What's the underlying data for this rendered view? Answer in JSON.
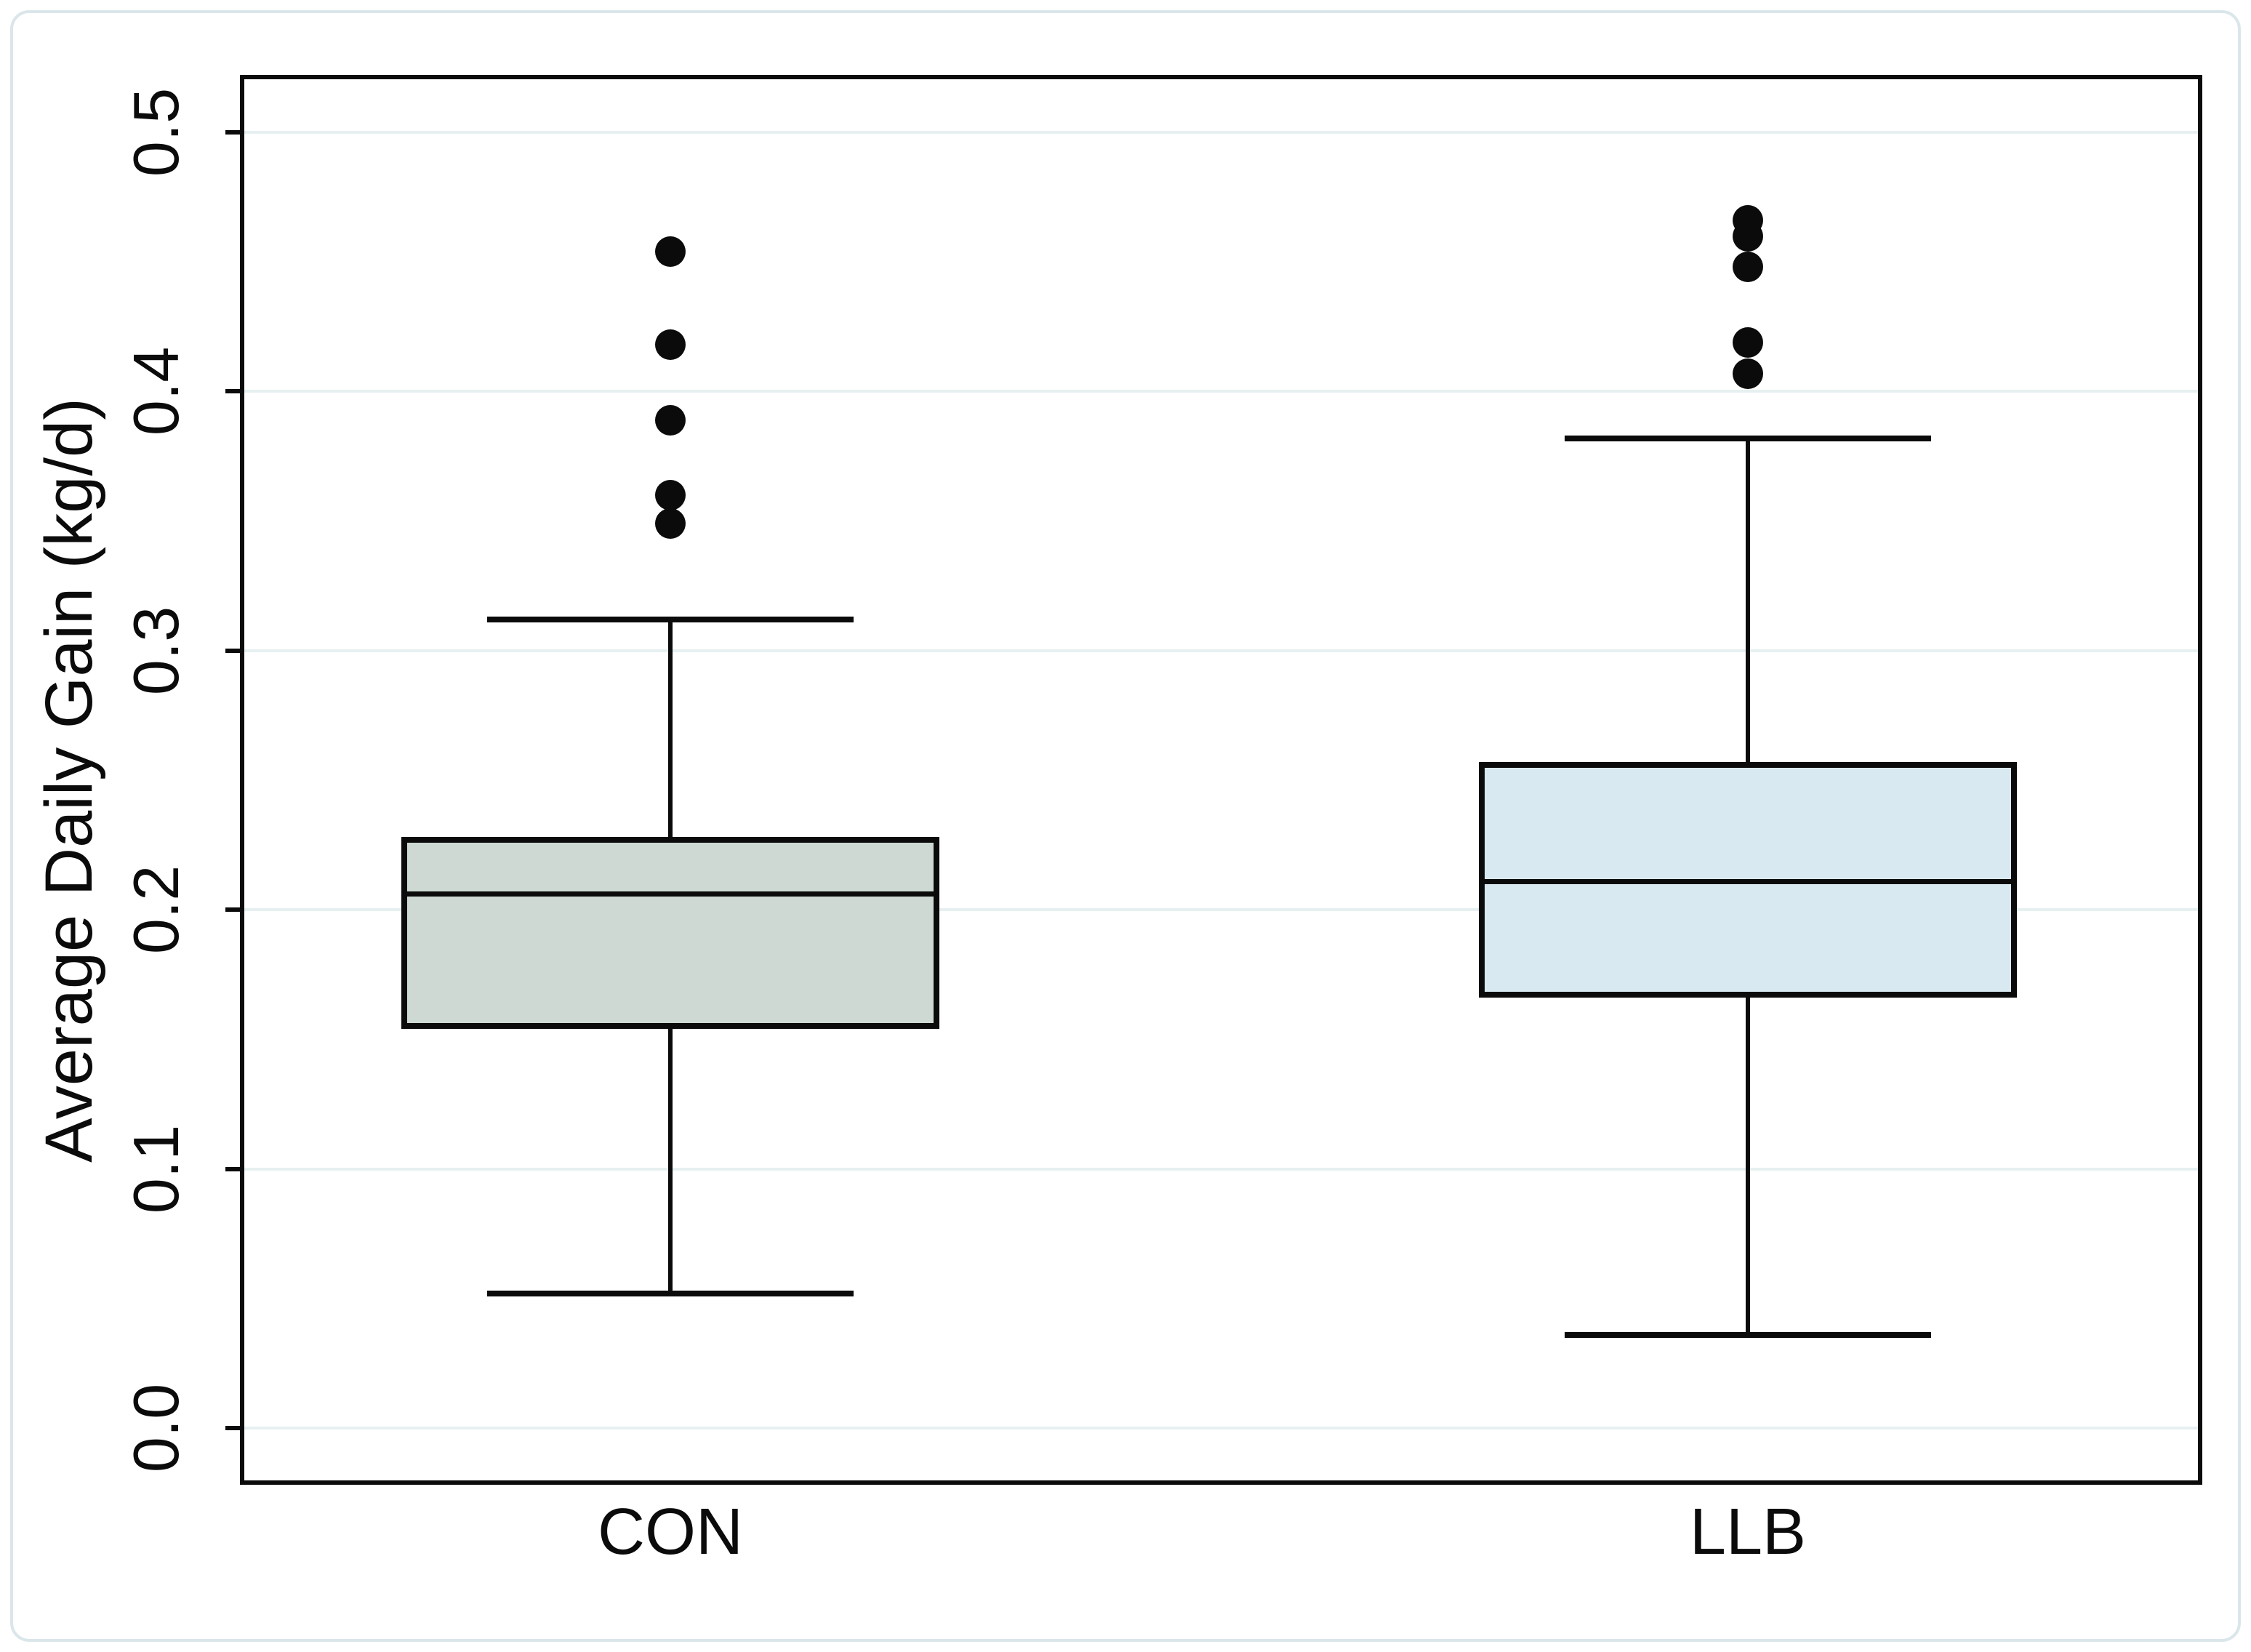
{
  "chart_data": {
    "type": "boxplot",
    "title": "",
    "ylabel": "Average Daily Gain (kg/d)",
    "xlabel": "",
    "categories": [
      "CON",
      "LLB"
    ],
    "yticks": [
      0.0,
      0.1,
      0.2,
      0.3,
      0.4,
      0.5
    ],
    "ytick_labels": [
      "0.0",
      "0.1",
      "0.2",
      "0.3",
      "0.4",
      "0.5"
    ],
    "ylim": [
      -0.02,
      0.52
    ],
    "grid": "horizontal light gridlines at every y tick",
    "legend_position": "none",
    "series": [
      {
        "name": "CON",
        "lower_whisker": 0.052,
        "q1": 0.154,
        "median": 0.206,
        "q3": 0.228,
        "upper_whisker": 0.312,
        "outliers": [
          0.349,
          0.36,
          0.389,
          0.418,
          0.454
        ],
        "box_fill": "#cdd9d2"
      },
      {
        "name": "LLB",
        "lower_whisker": 0.036,
        "q1": 0.166,
        "median": 0.211,
        "q3": 0.257,
        "upper_whisker": 0.382,
        "outliers": [
          0.407,
          0.419,
          0.448,
          0.46,
          0.466
        ],
        "box_fill": "#d9e9f1"
      }
    ],
    "colors": {
      "stroke": "#0b0b0b",
      "gridline": "#e7f0f1",
      "background": "#ffffff",
      "outer_border": "#dbe6eb"
    }
  }
}
